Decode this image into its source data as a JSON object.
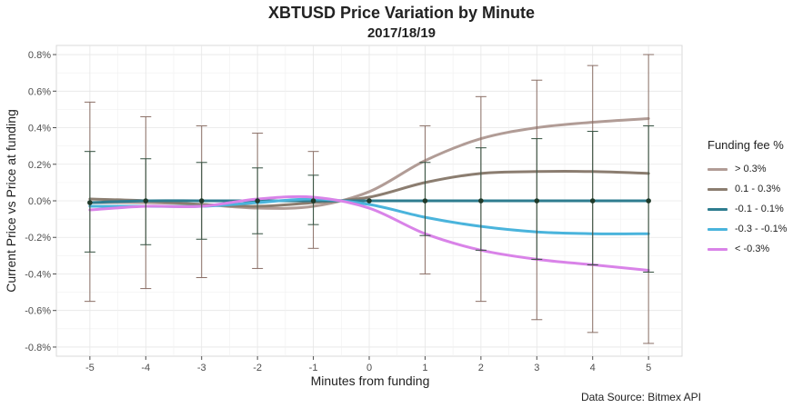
{
  "title": "XBTUSD Price Variation by Minute",
  "subtitle": "2017/18/19",
  "caption": "Data Source: Bitmex API",
  "chart_data": {
    "type": "line",
    "xlabel": "Minutes from funding",
    "ylabel": "Current Price vs Price at funding",
    "x": [
      -5,
      -4,
      -3,
      -2,
      -1,
      0,
      1,
      2,
      3,
      4,
      5
    ],
    "xlim": [
      -5.6,
      5.6
    ],
    "ylim": [
      -0.85,
      0.85
    ],
    "yticks": [
      -0.8,
      -0.6,
      -0.4,
      -0.2,
      0.0,
      0.2,
      0.4,
      0.6,
      0.8
    ],
    "ytick_labels": [
      "-0.8%",
      "-0.6%",
      "-0.4%",
      "-0.2%",
      "0.0%",
      "0.2%",
      "0.4%",
      "0.6%",
      "0.8%"
    ],
    "grid": true,
    "legend_title": "Funding fee %",
    "legend_position": "right",
    "series": [
      {
        "name": "> 0.3%",
        "color": "#b19c96",
        "values": [
          -0.01,
          -0.01,
          -0.02,
          -0.04,
          -0.03,
          0.05,
          0.22,
          0.34,
          0.4,
          0.43,
          0.45
        ]
      },
      {
        "name": "0.1 - 0.3%",
        "color": "#8b7d70",
        "values": [
          0.01,
          0.0,
          -0.02,
          -0.03,
          -0.01,
          0.02,
          0.1,
          0.15,
          0.16,
          0.16,
          0.15
        ]
      },
      {
        "name": "-0.1 - 0.1%",
        "color": "#2e7c8f",
        "values": [
          -0.01,
          0.0,
          0.0,
          0.0,
          0.0,
          0.0,
          0.0,
          0.0,
          0.0,
          0.0,
          0.0
        ]
      },
      {
        "name": "-0.3 - -0.1%",
        "color": "#4ab4dc",
        "values": [
          -0.03,
          -0.03,
          -0.03,
          -0.01,
          0.01,
          -0.02,
          -0.09,
          -0.14,
          -0.17,
          -0.18,
          -0.18
        ]
      },
      {
        "name": "< -0.3%",
        "color": "#d983e8",
        "values": [
          -0.05,
          -0.03,
          -0.03,
          0.01,
          0.02,
          -0.04,
          -0.18,
          -0.27,
          -0.32,
          -0.35,
          -0.38
        ]
      }
    ],
    "points": {
      "color": "#1f3a2a",
      "x": [
        -5,
        -4,
        -3,
        -2,
        -1,
        0,
        1,
        2,
        3,
        4,
        5
      ],
      "y": [
        -0.01,
        0.0,
        0.0,
        0.0,
        0.0,
        0.0,
        0.0,
        0.0,
        0.0,
        0.0,
        0.0
      ]
    },
    "error_bars": [
      {
        "name": "wide",
        "color": "#8a6f66",
        "x": [
          -5,
          -4,
          -3,
          -2,
          -1,
          1,
          2,
          3,
          4,
          5
        ],
        "low": [
          -0.55,
          -0.48,
          -0.42,
          -0.37,
          -0.26,
          -0.4,
          -0.55,
          -0.65,
          -0.72,
          -0.78
        ],
        "high": [
          0.54,
          0.46,
          0.41,
          0.37,
          0.27,
          0.41,
          0.57,
          0.66,
          0.74,
          0.8
        ]
      },
      {
        "name": "narrow",
        "color": "#33503f",
        "x": [
          -5,
          -4,
          -3,
          -2,
          -1,
          1,
          2,
          3,
          4,
          5
        ],
        "low": [
          -0.28,
          -0.24,
          -0.21,
          -0.18,
          -0.13,
          -0.19,
          -0.27,
          -0.32,
          -0.35,
          -0.39
        ],
        "high": [
          0.27,
          0.23,
          0.21,
          0.18,
          0.14,
          0.21,
          0.29,
          0.34,
          0.38,
          0.41
        ]
      }
    ]
  }
}
